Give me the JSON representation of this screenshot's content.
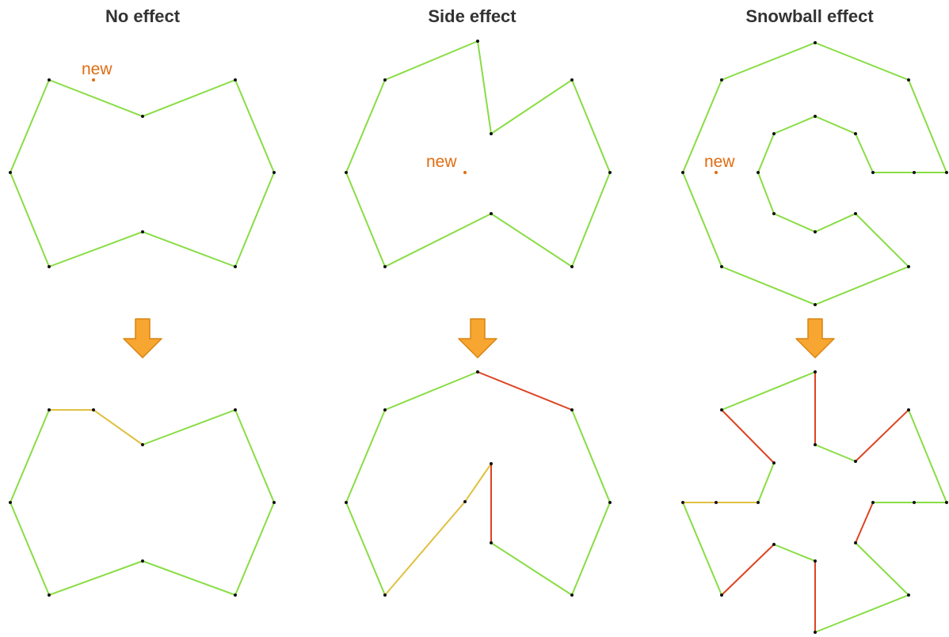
{
  "titles": {
    "no_effect": "No effect",
    "side_effect": "Side effect",
    "snowball_effect": "Snowball effect"
  },
  "new_point_label": "new",
  "colors": {
    "unchanged_edge": "#88dd44",
    "modified_edge": "#e0c040",
    "removed_edge": "#dd4422",
    "vertex": "#111111",
    "new_point": "#e06c12",
    "arrow_fill": "#f7a632",
    "arrow_stroke": "#d98410"
  },
  "icons": {
    "transition_arrow": "arrow-down-icon"
  }
}
